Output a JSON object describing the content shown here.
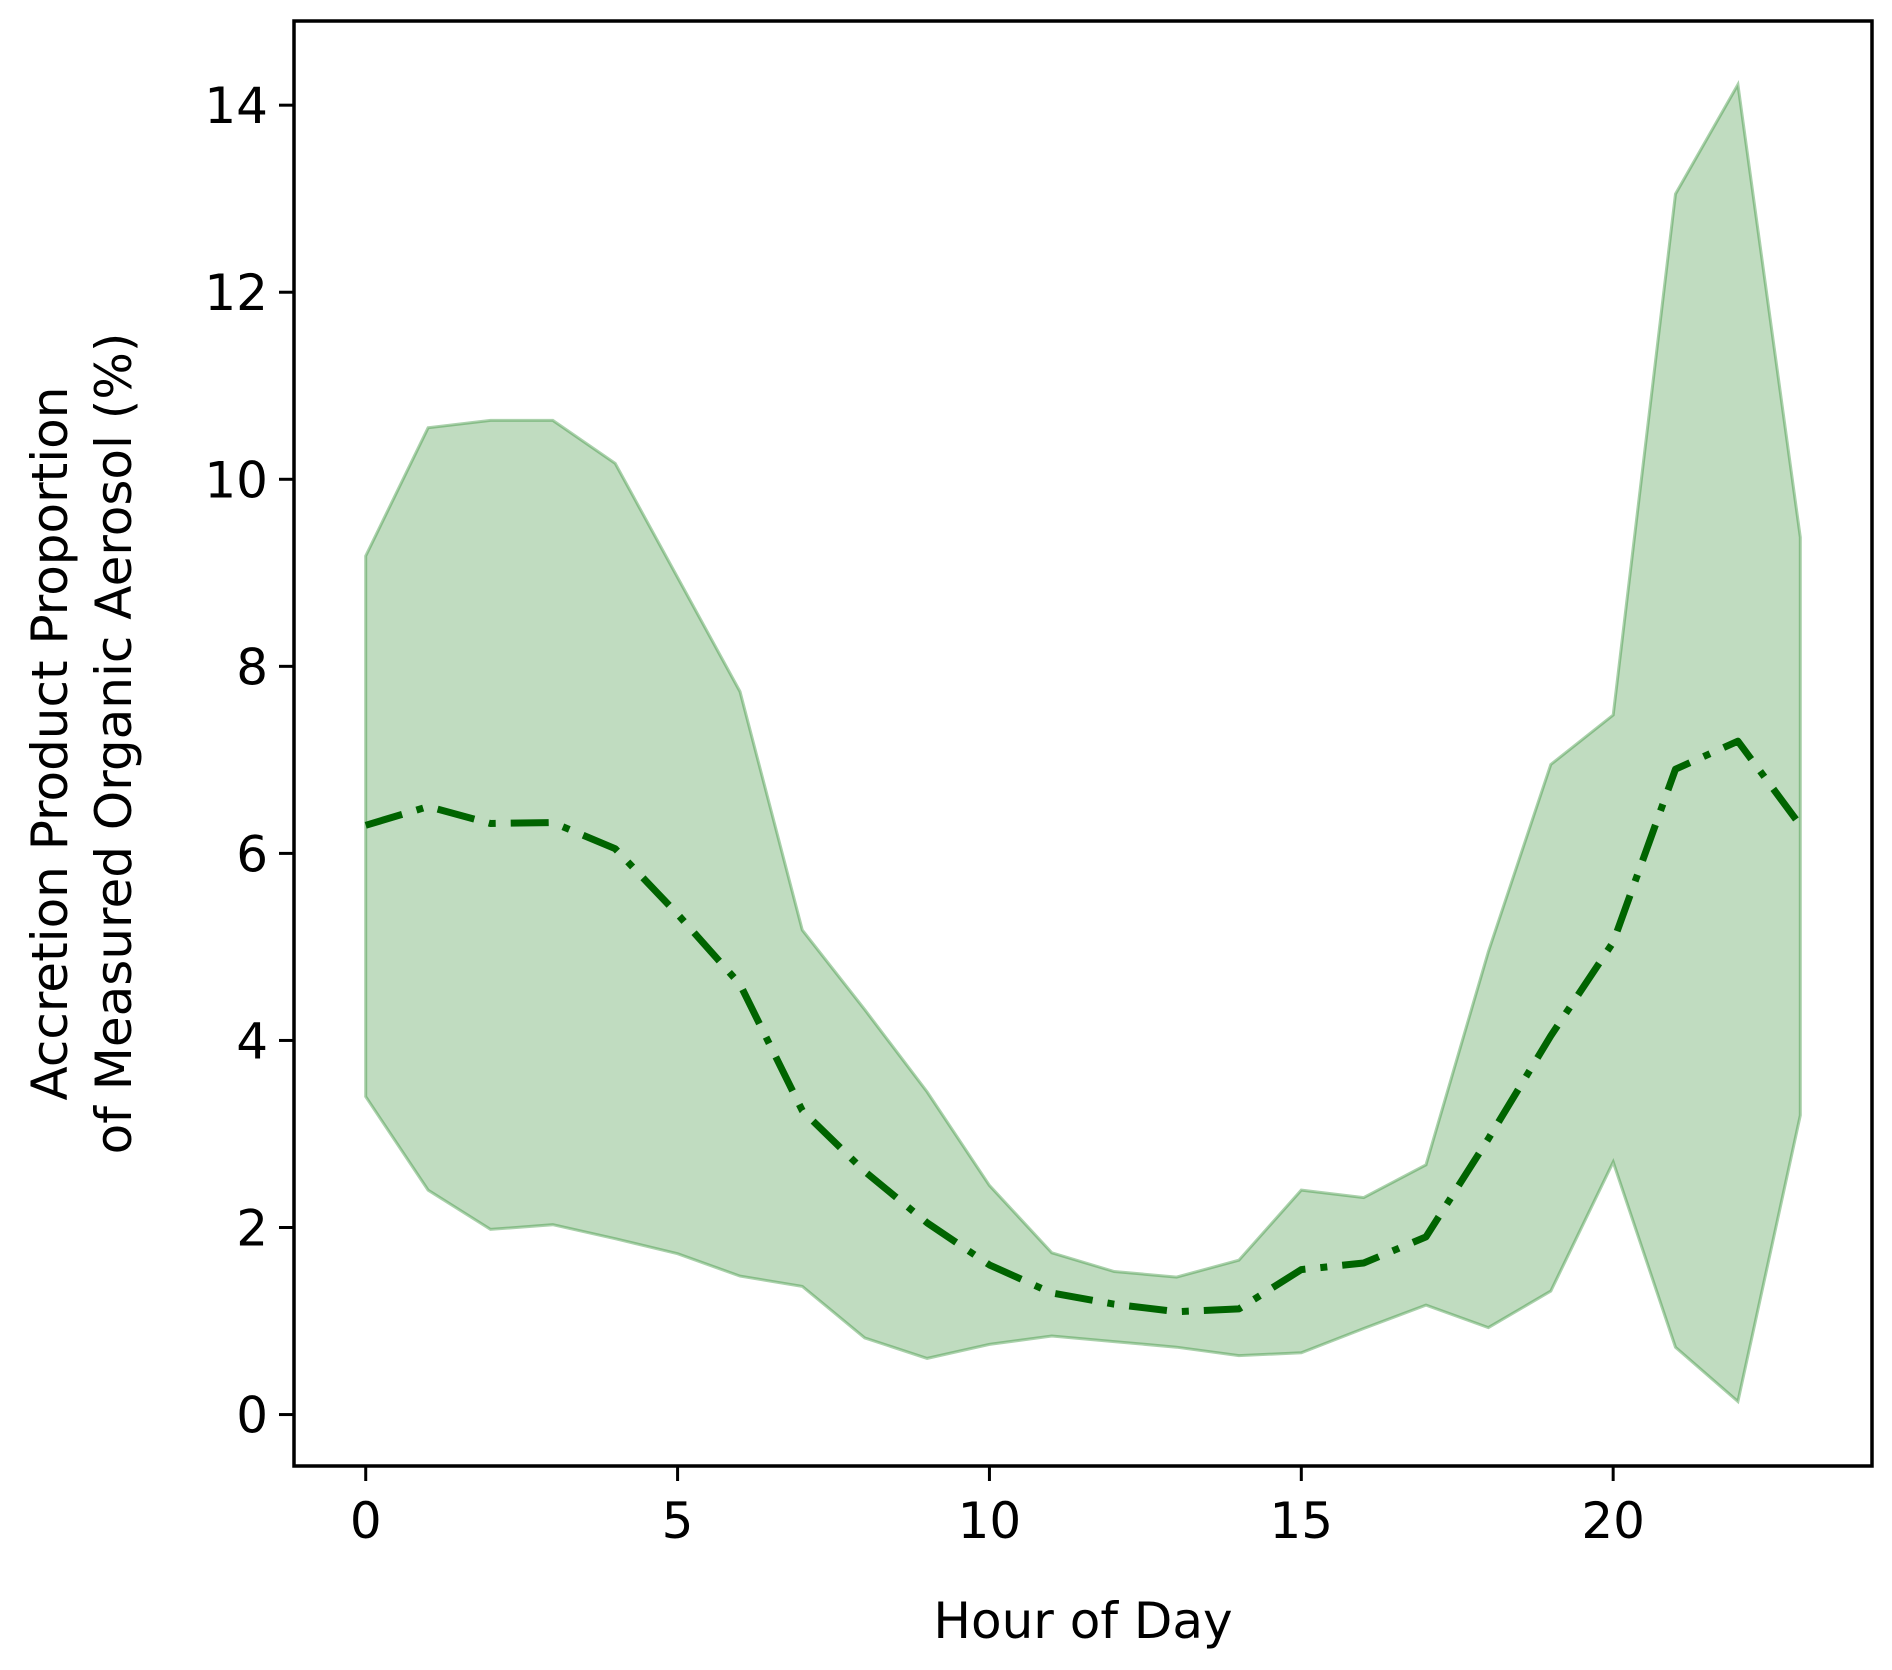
{
  "chart_data": {
    "type": "area",
    "title": "",
    "xlabel": "Hour of Day",
    "ylabel_lines": [
      "Accretion Product Proportion",
      "of Measured Organic Aerosol (%)"
    ],
    "xlim": [
      -1.15,
      24.15
    ],
    "ylim": [
      -0.55,
      14.9
    ],
    "xticks": [
      0,
      5,
      10,
      15,
      20
    ],
    "yticks": [
      0,
      2,
      4,
      6,
      8,
      10,
      12,
      14
    ],
    "grid": false,
    "legend": "none",
    "x": [
      0,
      1,
      2,
      3,
      4,
      5,
      6,
      7,
      8,
      9,
      10,
      11,
      12,
      13,
      14,
      15,
      16,
      17,
      18,
      19,
      20,
      21,
      22,
      23
    ],
    "series": [
      {
        "kind": "line",
        "line_style": "dash-dot",
        "color": "#006400",
        "values": [
          6.3,
          6.5,
          6.32,
          6.33,
          6.05,
          5.35,
          4.6,
          3.25,
          2.6,
          2.05,
          1.6,
          1.3,
          1.18,
          1.1,
          1.13,
          1.55,
          1.62,
          1.9,
          2.95,
          4.05,
          5.05,
          6.9,
          7.2,
          6.3
        ]
      },
      {
        "kind": "band",
        "color": "#2e8b30",
        "opacity": 0.3,
        "lower": [
          3.4,
          2.4,
          1.98,
          2.03,
          1.88,
          1.72,
          1.48,
          1.37,
          0.82,
          0.6,
          0.75,
          0.84,
          0.78,
          0.72,
          0.63,
          0.66,
          0.92,
          1.17,
          0.93,
          1.32,
          2.7,
          0.72,
          0.14,
          3.2
        ],
        "upper": [
          9.18,
          10.55,
          10.63,
          10.63,
          10.17,
          8.95,
          7.73,
          5.18,
          4.33,
          3.45,
          2.45,
          1.73,
          1.53,
          1.47,
          1.65,
          2.4,
          2.32,
          2.67,
          4.95,
          6.95,
          7.48,
          13.05,
          14.22,
          9.38
        ]
      }
    ]
  }
}
